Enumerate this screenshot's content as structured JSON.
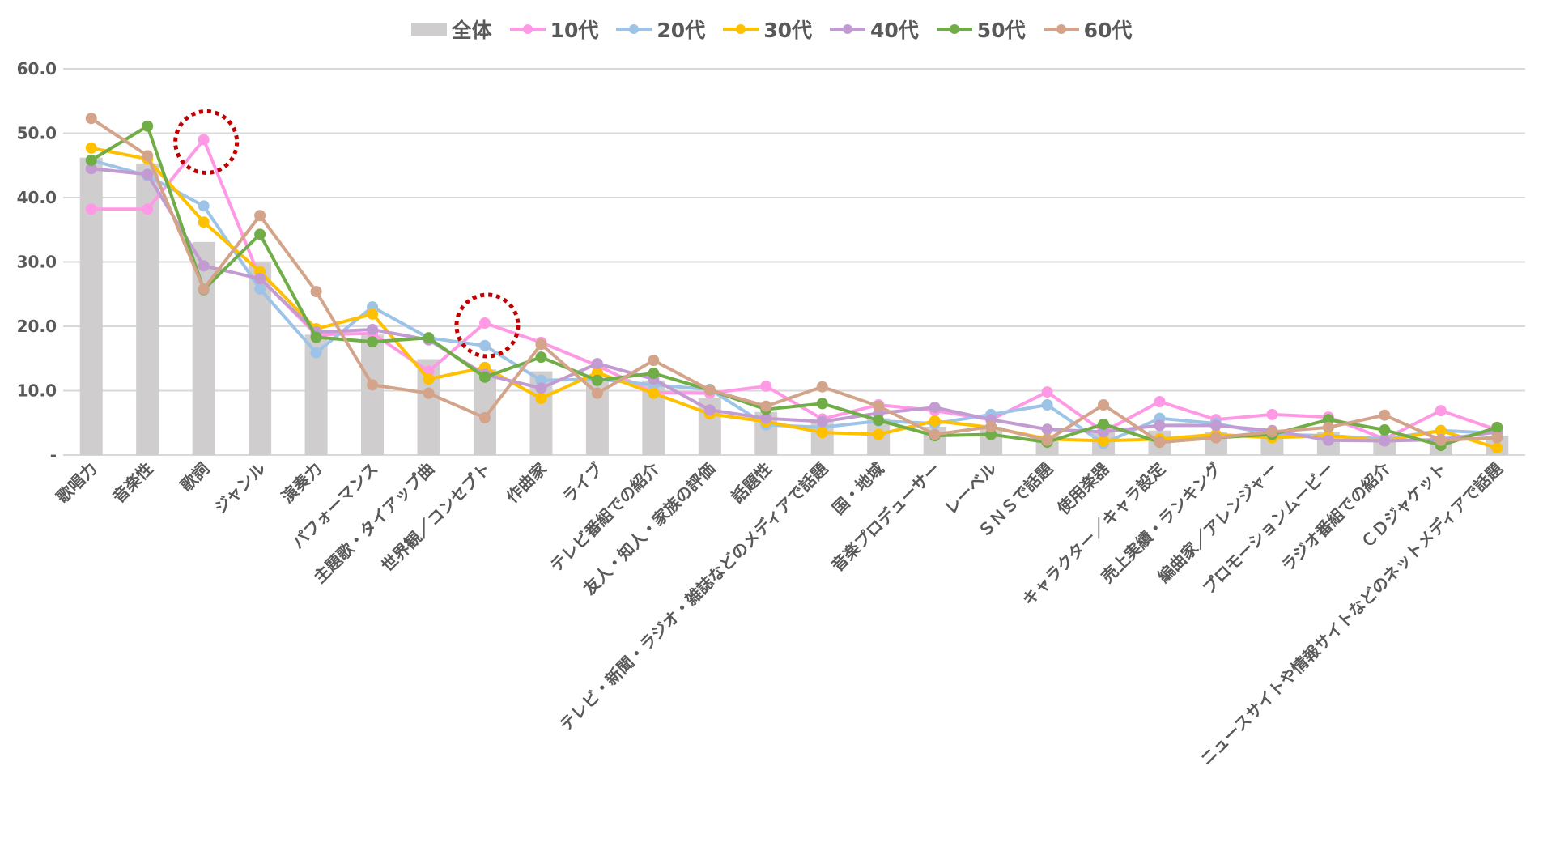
{
  "chart_data": {
    "type": "bar+line",
    "title": "",
    "xlabel": "",
    "ylabel": "",
    "ylim": [
      0,
      60
    ],
    "yticks": [
      "-",
      "10.0",
      "20.0",
      "30.0",
      "40.0",
      "50.0",
      "60.0"
    ],
    "ytick_values": [
      0,
      10,
      20,
      30,
      40,
      50,
      60
    ],
    "grid": true,
    "legend_position": "top-center",
    "categories": [
      "歌唱力",
      "音楽性",
      "歌詞",
      "ジャンル",
      "演奏力",
      "パフォーマンス",
      "主題歌・タイアップ曲",
      "世界観／コンセプト",
      "作曲家",
      "ライブ",
      "テレビ番組での紹介",
      "友人・知人・家族の評価",
      "話題性",
      "テレビ・新聞・ラジオ・雑誌などのメディアで話題",
      "国・地域",
      "音楽プロデューサー",
      "レーベル",
      "ＳＮＳで話題",
      "使用楽器",
      "キャラクター／キャラ設定",
      "売上実績・ランキング",
      "編曲家／アレンジャー",
      "プロモーションムービー",
      "ラジオ番組での紹介",
      "ＣＤジャケット",
      "ニュースサイトや情報サイトなどのネットメディアで話題"
    ],
    "bar_series": {
      "name": "全体",
      "color": "#cfcdcd",
      "values": [
        46.2,
        45.3,
        33.1,
        29.9,
        18.7,
        18.7,
        14.9,
        13.3,
        13.0,
        11.8,
        11.6,
        8.9,
        6.7,
        5.2,
        5.7,
        4.4,
        4.4,
        3.0,
        3.8,
        3.8,
        3.6,
        3.6,
        3.6,
        2.9,
        2.9,
        3.0
      ]
    },
    "series": [
      {
        "name": "10代",
        "color": "#ff99e6",
        "values": [
          38.2,
          38.2,
          49.0,
          27.5,
          18.7,
          18.9,
          13.0,
          20.5,
          17.5,
          13.9,
          9.7,
          9.6,
          10.7,
          5.6,
          7.8,
          6.9,
          5.5,
          9.8,
          3.6,
          8.3,
          5.5,
          6.3,
          5.9,
          2.5,
          6.9,
          3.9
        ]
      },
      {
        "name": "20代",
        "color": "#9dc3e6",
        "values": [
          45.8,
          43.4,
          38.7,
          25.8,
          15.9,
          23.0,
          18.2,
          17.0,
          11.6,
          11.8,
          10.9,
          10.2,
          4.7,
          4.3,
          5.3,
          4.9,
          6.3,
          7.8,
          1.8,
          5.7,
          4.9,
          3.2,
          3.0,
          2.5,
          3.8,
          3.4
        ]
      },
      {
        "name": "30代",
        "color": "#ffc000",
        "values": [
          47.7,
          46.0,
          36.2,
          28.5,
          19.6,
          21.9,
          11.8,
          13.6,
          8.8,
          12.8,
          9.6,
          6.4,
          5.2,
          3.5,
          3.2,
          5.3,
          4.3,
          2.5,
          2.2,
          2.5,
          3.2,
          2.7,
          3.0,
          2.2,
          3.8,
          1.1
        ]
      },
      {
        "name": "40代",
        "color": "#c39bd3",
        "values": [
          44.5,
          43.6,
          29.4,
          27.4,
          19.1,
          19.5,
          17.9,
          12.5,
          10.4,
          14.2,
          11.8,
          7.0,
          5.7,
          5.2,
          6.5,
          7.4,
          5.5,
          4.0,
          3.6,
          4.6,
          4.6,
          3.8,
          2.3,
          2.2,
          2.4,
          3.6
        ]
      },
      {
        "name": "50代",
        "color": "#70ad47",
        "values": [
          45.8,
          51.1,
          25.7,
          34.3,
          18.3,
          17.6,
          18.2,
          12.1,
          15.2,
          11.6,
          12.7,
          10.1,
          7.1,
          8.0,
          5.4,
          3.0,
          3.2,
          2.0,
          4.8,
          2.0,
          2.7,
          3.2,
          5.5,
          3.9,
          1.5,
          4.3
        ]
      },
      {
        "name": "60代",
        "color": "#d4a48a",
        "values": [
          52.3,
          46.5,
          25.8,
          37.2,
          25.4,
          10.9,
          9.6,
          5.8,
          17.2,
          9.6,
          14.7,
          10.1,
          7.6,
          10.6,
          7.6,
          3.2,
          4.4,
          2.3,
          7.8,
          2.0,
          2.7,
          3.6,
          4.3,
          6.2,
          2.3,
          2.7
        ]
      }
    ],
    "annotations": [
      {
        "type": "dotted-circle",
        "color": "#c00000",
        "category": "歌詞",
        "series": "10代",
        "value": 49.0
      },
      {
        "type": "dotted-circle",
        "color": "#c00000",
        "category": "世界観／コンセプト",
        "series": "10代",
        "value": 20.5
      }
    ]
  }
}
